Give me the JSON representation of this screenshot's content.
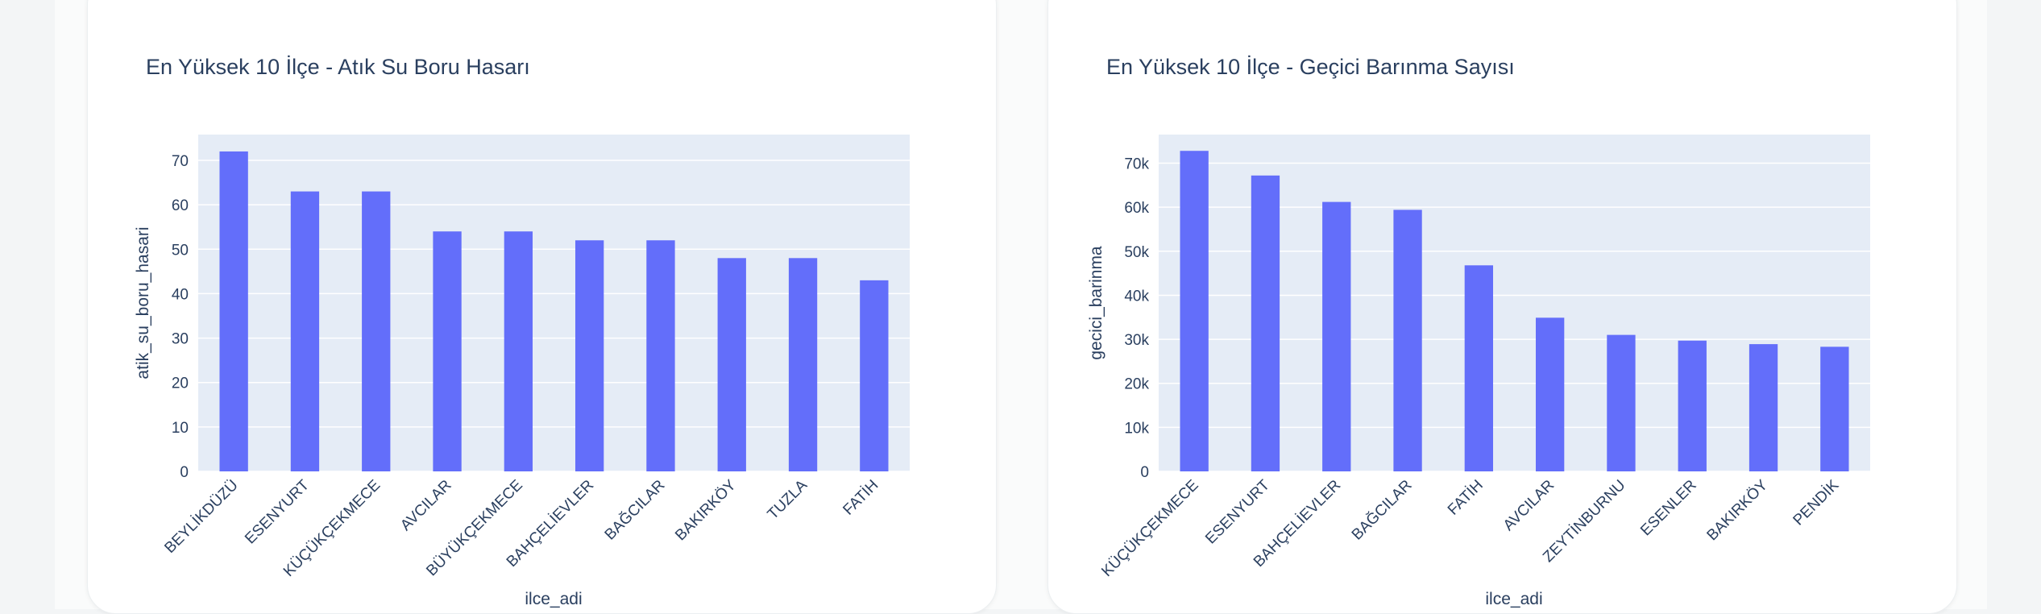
{
  "chart_data": [
    {
      "type": "bar",
      "title": "En Yüksek 10 İlçe - Atık Su Boru Hasarı",
      "xlabel": "ilce_adi",
      "ylabel": "atik_su_boru_hasari",
      "categories": [
        "BEYLİKDÜZÜ",
        "ESENYURT",
        "KÜÇÜKÇEKMECE",
        "AVCILAR",
        "BÜYÜKÇEKMECE",
        "BAHÇELİEVLER",
        "BAĞCILAR",
        "BAKIRKÖY",
        "TUZLA",
        "FATİH"
      ],
      "values": [
        72,
        63,
        63,
        54,
        54,
        52,
        52,
        48,
        48,
        43
      ],
      "ylim": [
        0,
        75.8
      ],
      "yticks": [
        0,
        10,
        20,
        30,
        40,
        50,
        60,
        70
      ],
      "ytick_labels": [
        "0",
        "10",
        "20",
        "30",
        "40",
        "50",
        "60",
        "70"
      ],
      "grid": true,
      "bar_color": "#636efa",
      "plot_bg": "#e5ecf6"
    },
    {
      "type": "bar",
      "title": "En Yüksek 10 İlçe - Geçici Barınma Sayısı",
      "xlabel": "ilce_adi",
      "ylabel": "gecici_barinma",
      "categories": [
        "KÜÇÜKÇEKMECE",
        "ESENYURT",
        "BAHÇELİEVLER",
        "BAĞCILAR",
        "FATİH",
        "AVCILAR",
        "ZEYTİNBURNU",
        "ESENLER",
        "BAKIRKÖY",
        "PENDİK"
      ],
      "values": [
        72800,
        67200,
        61200,
        59400,
        46800,
        34900,
        31000,
        29700,
        28900,
        28300
      ],
      "ylim": [
        0,
        76500
      ],
      "yticks": [
        0,
        10000,
        20000,
        30000,
        40000,
        50000,
        60000,
        70000
      ],
      "ytick_labels": [
        "0",
        "10k",
        "20k",
        "30k",
        "40k",
        "50k",
        "60k",
        "70k"
      ],
      "grid": true,
      "bar_color": "#636efa",
      "plot_bg": "#e5ecf6"
    }
  ]
}
